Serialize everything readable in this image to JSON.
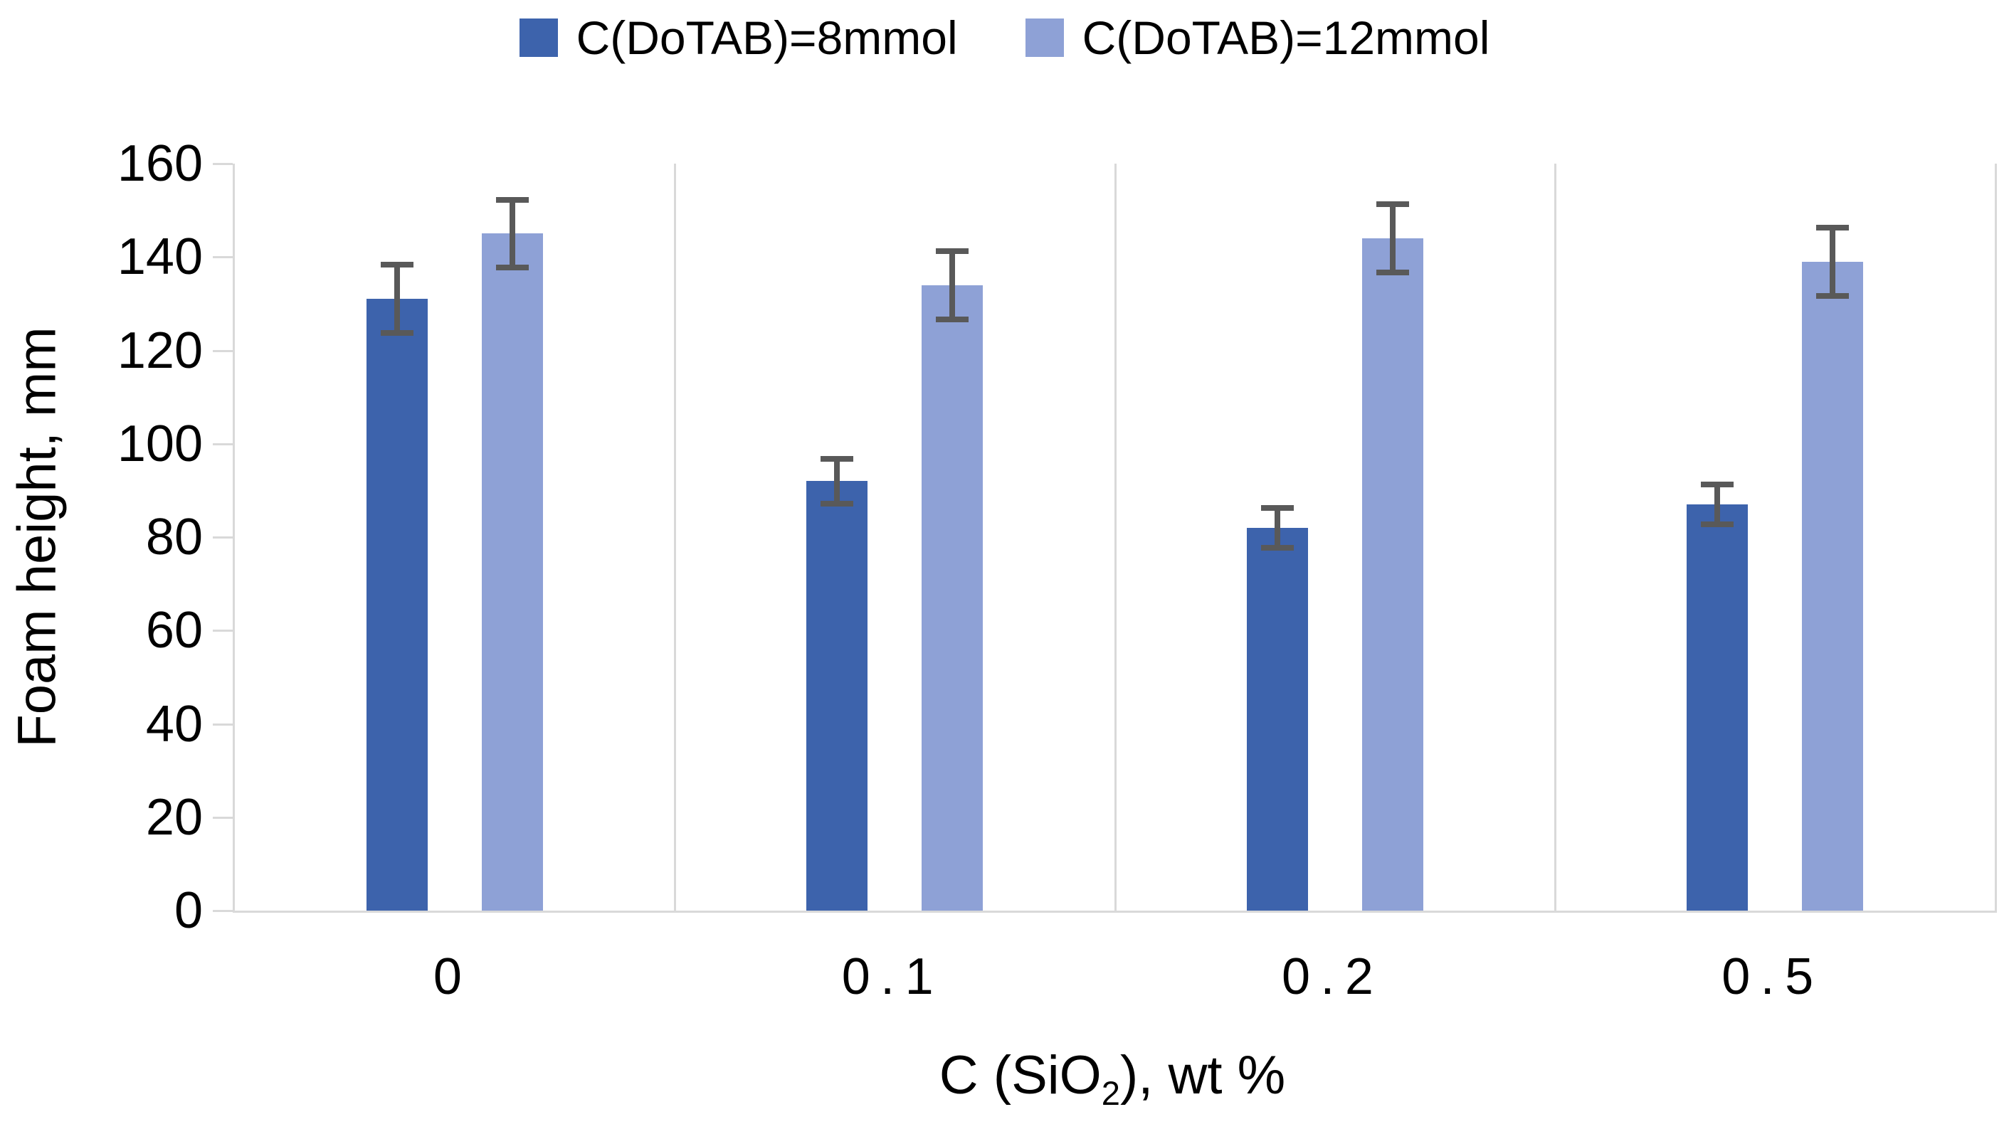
{
  "legend": {
    "items": [
      {
        "label": "C(DoTAB)=8mmol",
        "color": "#3D63AC"
      },
      {
        "label": "C(DoTAB)=12mmol",
        "color": "#8EA1D6"
      }
    ]
  },
  "y_axis": {
    "title": "Foam height, mm",
    "ticks": [
      0,
      20,
      40,
      60,
      80,
      100,
      120,
      140,
      160
    ],
    "max": 160
  },
  "x_axis": {
    "title_prefix": "C (SiO",
    "title_sub": "2",
    "title_suffix": "), wt %"
  },
  "chart_data": {
    "type": "bar",
    "title": "",
    "categories": [
      "0",
      "0.1",
      "0.2",
      "0.5"
    ],
    "series": [
      {
        "name": "C(DoTAB)=8mmol",
        "color": "#3D63AC",
        "values": [
          131,
          92,
          82,
          87
        ],
        "errors": [
          7,
          4.5,
          4,
          4
        ]
      },
      {
        "name": "C(DoTAB)=12mmol",
        "color": "#8EA1D6",
        "values": [
          145,
          134,
          144,
          139
        ],
        "errors": [
          7,
          7,
          7,
          7
        ]
      }
    ],
    "xlabel": "C (SiO2), wt %",
    "ylabel": "Foam height, mm",
    "ylim": [
      0,
      160
    ],
    "grid": "vertical-category-separators-only",
    "legend_position": "top-center",
    "error_bar_color": "#595959",
    "axis_line_color": "#D9D9D9"
  }
}
